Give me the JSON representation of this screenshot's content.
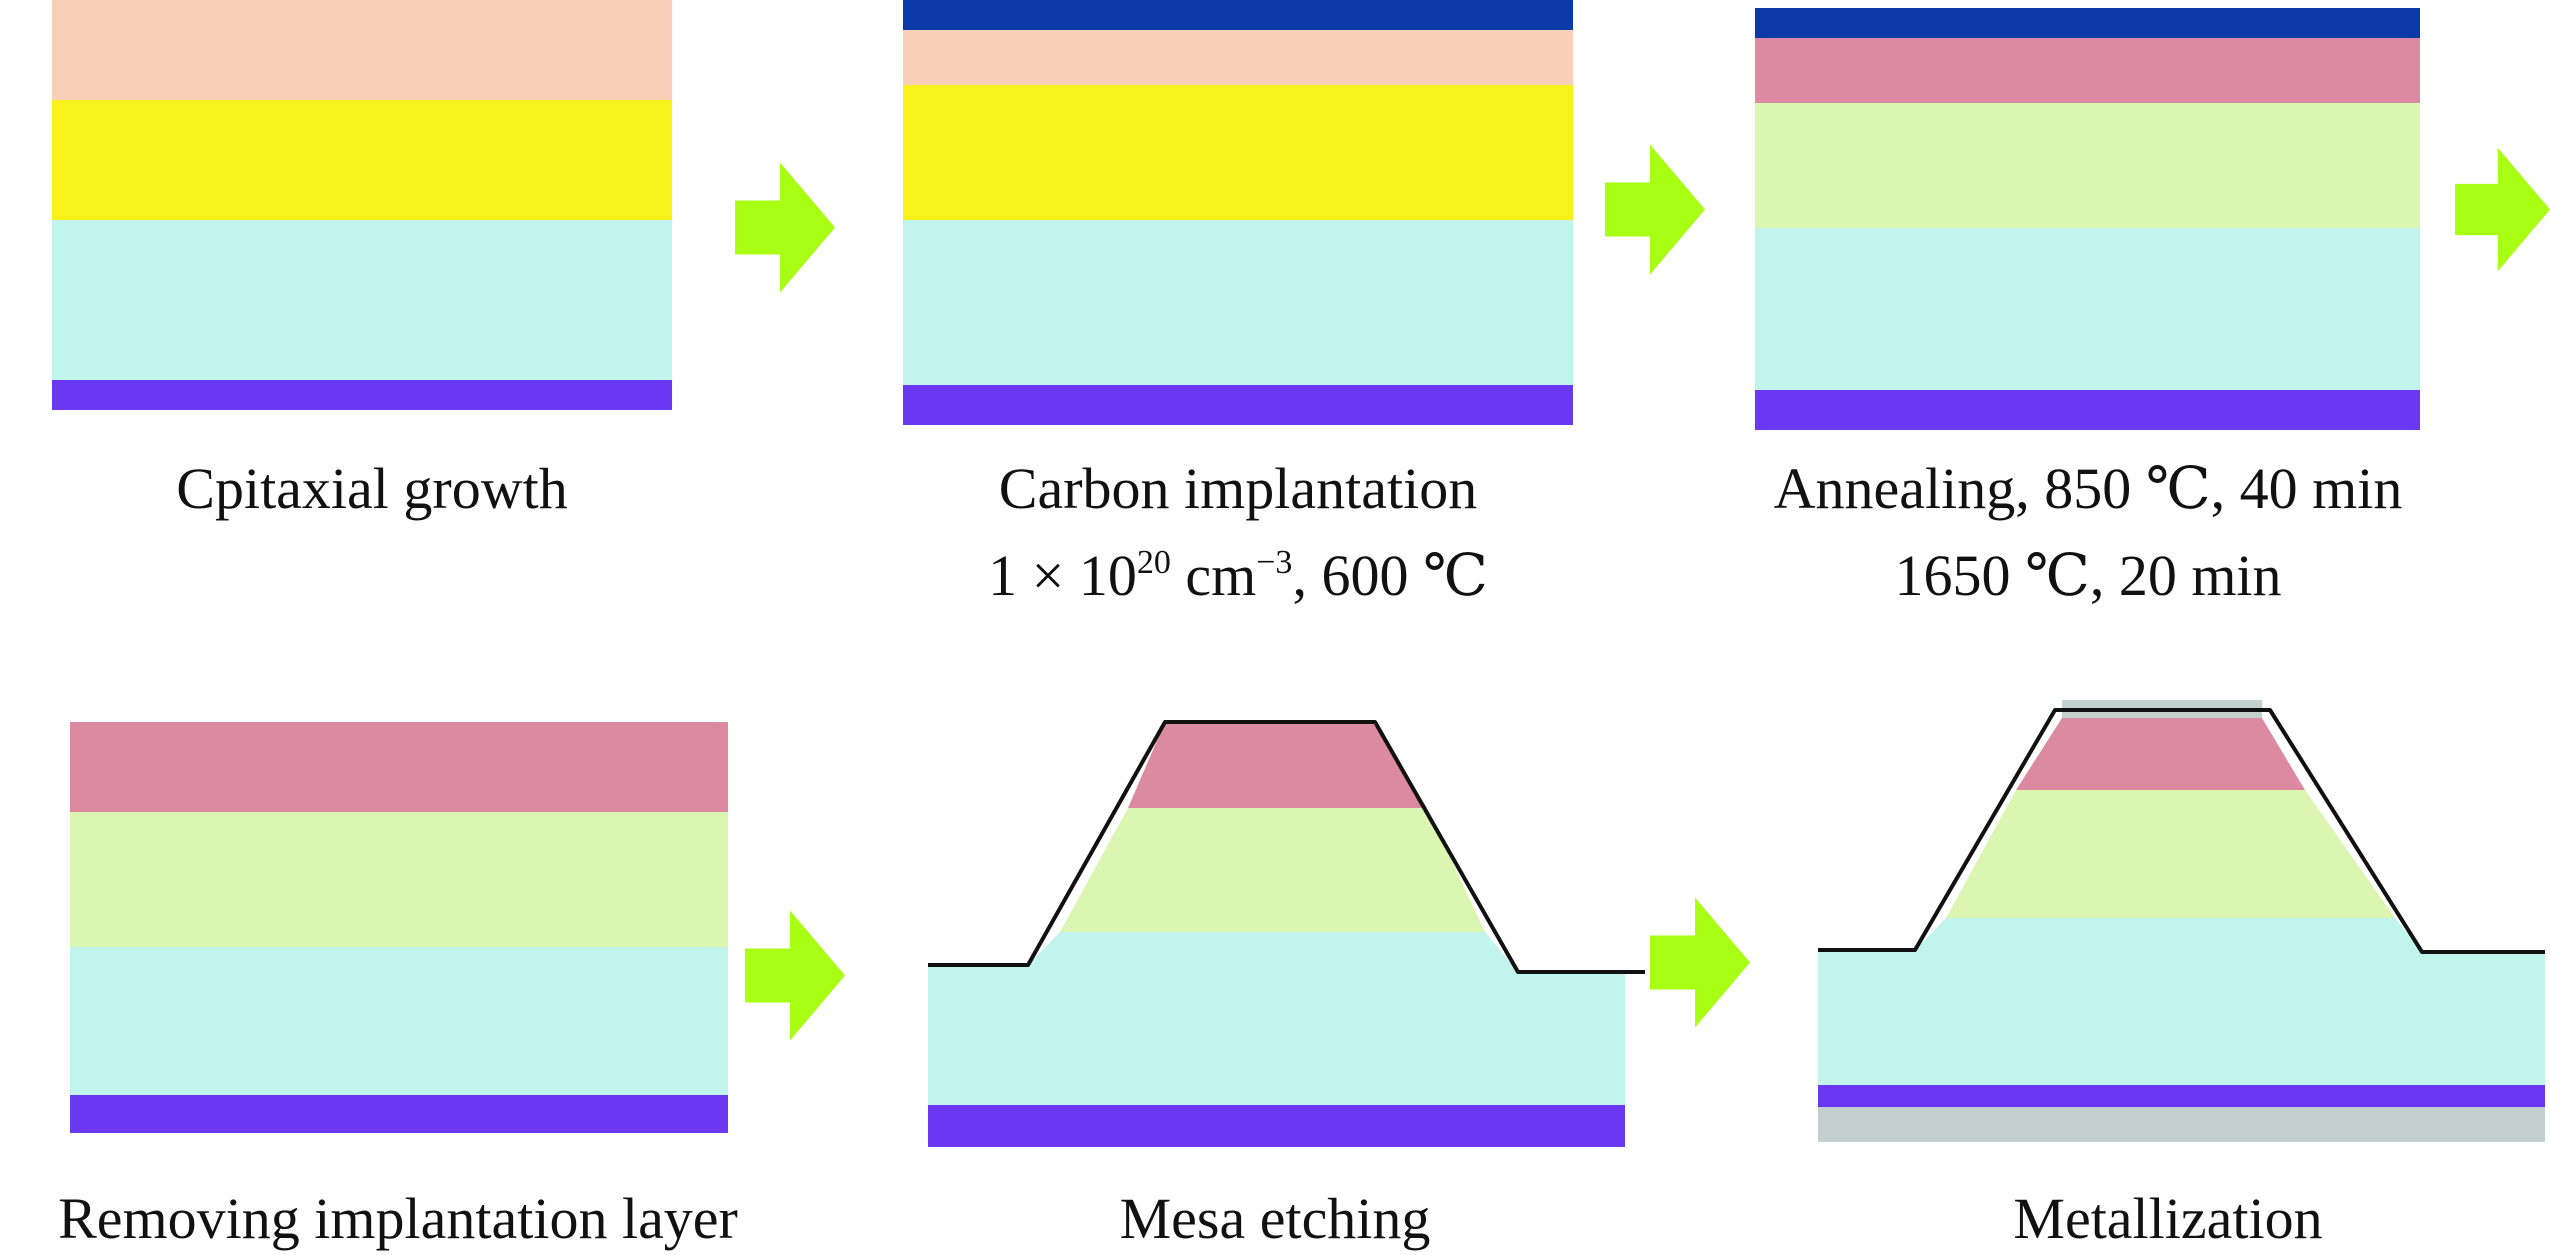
{
  "colors": {
    "substrate": "#c0f4ec",
    "drift": "#f7f21a",
    "cap": "#f9cfb8",
    "implant": "#0a3aa8",
    "implanted": "#db8aa2",
    "annealed": "#daf6b0",
    "contact": "#6a38f0",
    "metal": "#c4d0ce",
    "arrow": "#a8ff14",
    "outline": "#111111"
  },
  "steps": [
    {
      "label": "Cpitaxial growth"
    },
    {
      "label": "Carbon implantation",
      "sub_prefix": "1 × 10",
      "sub_sup": "20",
      "sub_unit": " cm",
      "sub_unit_sup": "−3",
      "sub_suffix": ", 600 ℃"
    },
    {
      "label": "Annealing, 850 ℃, 40 min",
      "sub": "1650 ℃, 20 min"
    },
    {
      "label": "Removing implantation layer"
    },
    {
      "label": "Mesa etching"
    },
    {
      "label": "Metallization"
    }
  ],
  "arrows": [
    {
      "icon": "arrow-right-icon"
    },
    {
      "icon": "arrow-right-icon"
    },
    {
      "icon": "arrow-right-icon"
    },
    {
      "icon": "arrow-right-icon"
    },
    {
      "icon": "arrow-right-icon"
    }
  ]
}
